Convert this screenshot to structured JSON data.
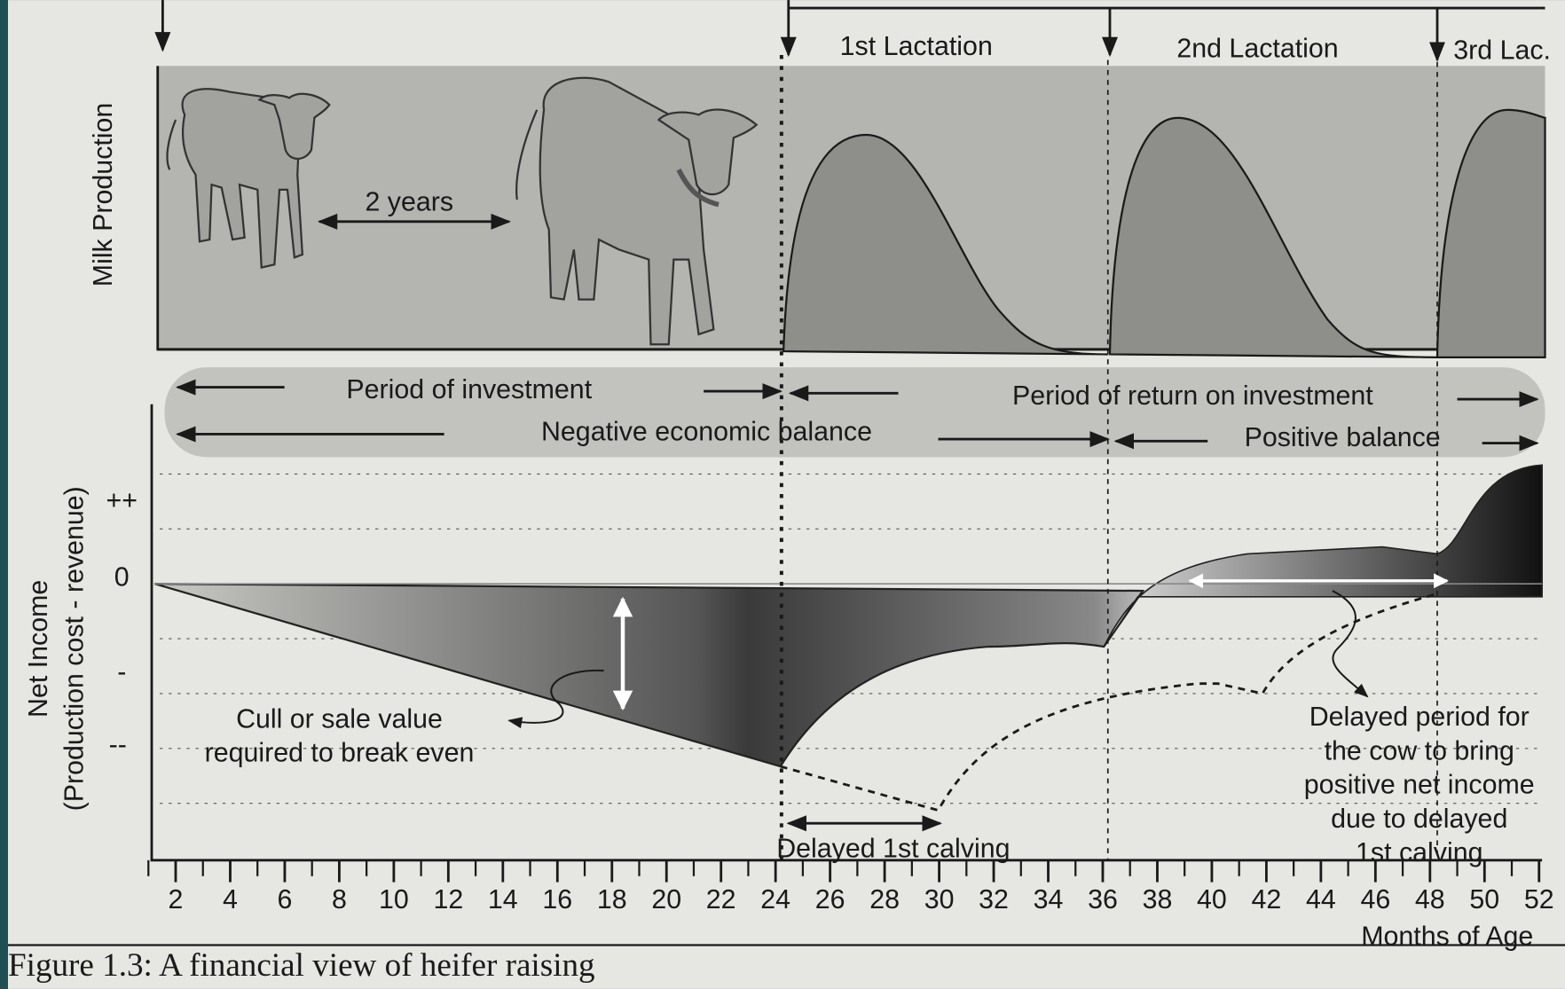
{
  "figure": {
    "caption": "Figure 1.3:  A financial view of heifer raising",
    "milk_panel": {
      "y_label": "Milk Production",
      "span_label": "2 years",
      "lactations": [
        "1st Lactation",
        "2nd Lactation",
        "3rd Lac."
      ]
    },
    "periods": {
      "investment": "Period of investment",
      "negative": "Negative economic balance",
      "return": "Period of return on investment",
      "positive": "Positive balance"
    },
    "income_panel": {
      "y_label": "Net Income",
      "y_sublabel": "(Production cost - revenue)",
      "y_levels": [
        "++",
        "0",
        "-",
        "--"
      ],
      "x_ticks": [
        2,
        4,
        6,
        8,
        10,
        12,
        14,
        16,
        18,
        20,
        22,
        24,
        26,
        28,
        30,
        32,
        34,
        36,
        38,
        40,
        42,
        44,
        46,
        48,
        50,
        52
      ],
      "x_label": "Months of Age",
      "break_even": [
        "Cull or sale value",
        "required to break even"
      ],
      "delayed_calving": "Delayed 1st calving",
      "delayed_period": [
        "Delayed period for",
        "the cow to bring",
        "positive net income",
        "due to delayed",
        "1st calving"
      ]
    }
  }
}
